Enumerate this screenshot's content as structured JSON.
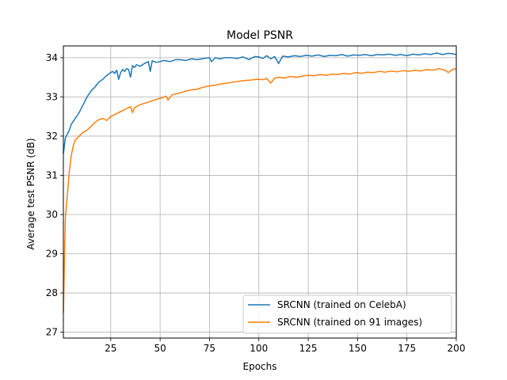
{
  "chart_data": {
    "type": "line",
    "title": "Model PSNR",
    "xlabel": "Epochs",
    "ylabel": "Average test PSNR (dB)",
    "xlim": [
      1,
      200
    ],
    "ylim": [
      26.85,
      34.3
    ],
    "xticks": [
      25,
      50,
      75,
      100,
      125,
      150,
      175,
      200
    ],
    "yticks": [
      27,
      28,
      29,
      30,
      31,
      32,
      33,
      34
    ],
    "grid": true,
    "legend_position": "lower-right",
    "series": [
      {
        "name": "SRCNN (trained on CelebA)",
        "color": "#1f77b4",
        "points": [
          [
            1,
            31.55
          ],
          [
            2,
            31.95
          ],
          [
            3,
            32.05
          ],
          [
            4,
            32.15
          ],
          [
            5,
            32.3
          ],
          [
            7,
            32.45
          ],
          [
            9,
            32.6
          ],
          [
            11,
            32.8
          ],
          [
            13,
            33.0
          ],
          [
            15,
            33.15
          ],
          [
            17,
            33.25
          ],
          [
            19,
            33.38
          ],
          [
            21,
            33.45
          ],
          [
            23,
            33.55
          ],
          [
            25,
            33.62
          ],
          [
            26,
            33.65
          ],
          [
            27,
            33.6
          ],
          [
            28,
            33.68
          ],
          [
            29,
            33.45
          ],
          [
            30,
            33.62
          ],
          [
            31,
            33.7
          ],
          [
            32,
            33.65
          ],
          [
            33,
            33.72
          ],
          [
            34,
            33.7
          ],
          [
            35,
            33.5
          ],
          [
            36,
            33.8
          ],
          [
            37,
            33.75
          ],
          [
            38,
            33.82
          ],
          [
            40,
            33.78
          ],
          [
            42,
            33.85
          ],
          [
            44,
            33.9
          ],
          [
            45,
            33.65
          ],
          [
            46,
            33.92
          ],
          [
            48,
            33.88
          ],
          [
            50,
            33.9
          ],
          [
            52,
            33.93
          ],
          [
            55,
            33.9
          ],
          [
            58,
            33.95
          ],
          [
            60,
            33.95
          ],
          [
            63,
            33.93
          ],
          [
            66,
            33.97
          ],
          [
            69,
            33.95
          ],
          [
            72,
            33.98
          ],
          [
            75,
            34.0
          ],
          [
            76,
            33.9
          ],
          [
            78,
            34.0
          ],
          [
            80,
            33.97
          ],
          [
            83,
            34.0
          ],
          [
            86,
            34.0
          ],
          [
            89,
            33.98
          ],
          [
            92,
            34.02
          ],
          [
            95,
            33.95
          ],
          [
            98,
            34.03
          ],
          [
            100,
            34.02
          ],
          [
            102,
            33.98
          ],
          [
            104,
            34.05
          ],
          [
            106,
            33.97
          ],
          [
            108,
            34.03
          ],
          [
            110,
            33.85
          ],
          [
            112,
            34.04
          ],
          [
            115,
            34.02
          ],
          [
            118,
            34.05
          ],
          [
            121,
            34.03
          ],
          [
            124,
            34.06
          ],
          [
            127,
            34.04
          ],
          [
            130,
            34.07
          ],
          [
            133,
            34.03
          ],
          [
            136,
            34.06
          ],
          [
            139,
            34.05
          ],
          [
            142,
            34.08
          ],
          [
            145,
            34.04
          ],
          [
            148,
            34.07
          ],
          [
            151,
            34.06
          ],
          [
            154,
            34.08
          ],
          [
            157,
            34.05
          ],
          [
            160,
            34.08
          ],
          [
            163,
            34.07
          ],
          [
            166,
            34.09
          ],
          [
            169,
            34.06
          ],
          [
            172,
            34.08
          ],
          [
            175,
            34.05
          ],
          [
            178,
            34.09
          ],
          [
            181,
            34.07
          ],
          [
            184,
            34.1
          ],
          [
            187,
            34.08
          ],
          [
            190,
            34.12
          ],
          [
            193,
            34.08
          ],
          [
            196,
            34.11
          ],
          [
            198,
            34.1
          ],
          [
            200,
            34.08
          ]
        ]
      },
      {
        "name": "SRCNN (trained on 91 images)",
        "color": "#ff7f0e",
        "points": [
          [
            1,
            27.5
          ],
          [
            2,
            29.9
          ],
          [
            3,
            30.5
          ],
          [
            4,
            31.1
          ],
          [
            5,
            31.5
          ],
          [
            6,
            31.75
          ],
          [
            7,
            31.9
          ],
          [
            9,
            32.0
          ],
          [
            11,
            32.1
          ],
          [
            13,
            32.15
          ],
          [
            15,
            32.25
          ],
          [
            17,
            32.35
          ],
          [
            19,
            32.42
          ],
          [
            21,
            32.45
          ],
          [
            23,
            32.4
          ],
          [
            25,
            32.5
          ],
          [
            27,
            32.55
          ],
          [
            29,
            32.6
          ],
          [
            31,
            32.65
          ],
          [
            33,
            32.7
          ],
          [
            35,
            32.75
          ],
          [
            36,
            32.6
          ],
          [
            37,
            32.72
          ],
          [
            39,
            32.78
          ],
          [
            41,
            32.82
          ],
          [
            43,
            32.85
          ],
          [
            45,
            32.88
          ],
          [
            47,
            32.92
          ],
          [
            49,
            32.95
          ],
          [
            51,
            32.98
          ],
          [
            53,
            33.02
          ],
          [
            54,
            32.92
          ],
          [
            56,
            33.05
          ],
          [
            58,
            33.08
          ],
          [
            60,
            33.1
          ],
          [
            63,
            33.15
          ],
          [
            66,
            33.18
          ],
          [
            69,
            33.2
          ],
          [
            72,
            33.25
          ],
          [
            75,
            33.28
          ],
          [
            78,
            33.3
          ],
          [
            81,
            33.33
          ],
          [
            84,
            33.35
          ],
          [
            87,
            33.38
          ],
          [
            90,
            33.4
          ],
          [
            93,
            33.42
          ],
          [
            96,
            33.43
          ],
          [
            99,
            33.45
          ],
          [
            102,
            33.44
          ],
          [
            104,
            33.47
          ],
          [
            106,
            33.35
          ],
          [
            108,
            33.48
          ],
          [
            110,
            33.5
          ],
          [
            113,
            33.48
          ],
          [
            116,
            33.52
          ],
          [
            119,
            33.5
          ],
          [
            122,
            33.53
          ],
          [
            125,
            33.55
          ],
          [
            128,
            33.54
          ],
          [
            131,
            33.57
          ],
          [
            134,
            33.55
          ],
          [
            137,
            33.58
          ],
          [
            140,
            33.57
          ],
          [
            143,
            33.6
          ],
          [
            146,
            33.58
          ],
          [
            149,
            33.62
          ],
          [
            152,
            33.6
          ],
          [
            155,
            33.63
          ],
          [
            158,
            33.62
          ],
          [
            161,
            33.65
          ],
          [
            164,
            33.63
          ],
          [
            167,
            33.66
          ],
          [
            170,
            33.64
          ],
          [
            173,
            33.67
          ],
          [
            176,
            33.65
          ],
          [
            179,
            33.68
          ],
          [
            182,
            33.66
          ],
          [
            185,
            33.7
          ],
          [
            188,
            33.68
          ],
          [
            191,
            33.72
          ],
          [
            194,
            33.69
          ],
          [
            196,
            33.62
          ],
          [
            198,
            33.7
          ],
          [
            200,
            33.72
          ]
        ]
      }
    ]
  }
}
